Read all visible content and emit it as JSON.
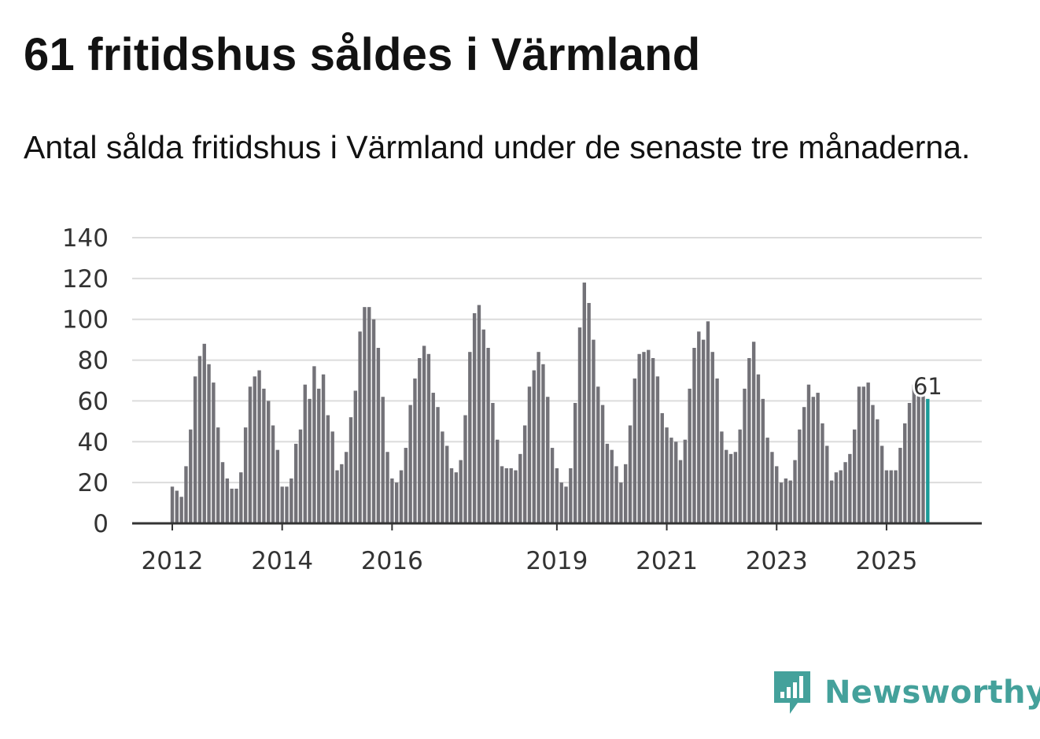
{
  "header": {
    "title": "61 fritidshus såldes i Värmland",
    "subtitle": "Antal sålda fritidshus i Värmland under de senaste tre månaderna."
  },
  "brand": {
    "name": "Newsworthy",
    "color": "#44a19b"
  },
  "colors": {
    "bar": "#737278",
    "highlight": "#1a9b98",
    "grid": "#dcdcdc",
    "axis": "#333333"
  },
  "chart_data": {
    "type": "bar",
    "title": "61 fritidshus såldes i Värmland",
    "subtitle": "Antal sålda fritidshus i Värmland under de senaste tre månaderna.",
    "xlabel": "",
    "ylabel": "",
    "ylim": [
      0,
      140
    ],
    "yticks": [
      0,
      20,
      40,
      60,
      80,
      100,
      120,
      140
    ],
    "grid": true,
    "start": "2012-01",
    "xtick_labels": [
      {
        "label": "2012",
        "index": 0
      },
      {
        "label": "2014",
        "index": 24
      },
      {
        "label": "2016",
        "index": 48
      },
      {
        "label": "2019",
        "index": 84
      },
      {
        "label": "2021",
        "index": 108
      },
      {
        "label": "2023",
        "index": 132
      },
      {
        "label": "2025",
        "index": 156
      }
    ],
    "values": [
      18,
      16,
      13,
      28,
      46,
      72,
      82,
      88,
      78,
      69,
      47,
      30,
      22,
      17,
      17,
      25,
      47,
      67,
      72,
      75,
      66,
      60,
      48,
      36,
      18,
      18,
      22,
      39,
      46,
      68,
      61,
      77,
      66,
      73,
      53,
      45,
      26,
      29,
      35,
      52,
      65,
      94,
      106,
      106,
      100,
      86,
      62,
      35,
      22,
      20,
      26,
      37,
      58,
      71,
      81,
      87,
      83,
      64,
      57,
      45,
      38,
      27,
      25,
      31,
      53,
      84,
      103,
      107,
      95,
      86,
      59,
      41,
      28,
      27,
      27,
      26,
      34,
      48,
      67,
      75,
      84,
      78,
      62,
      37,
      27,
      20,
      18,
      27,
      59,
      96,
      118,
      108,
      90,
      67,
      58,
      39,
      36,
      28,
      20,
      29,
      48,
      71,
      83,
      84,
      85,
      81,
      72,
      54,
      47,
      42,
      40,
      31,
      41,
      66,
      86,
      94,
      90,
      99,
      84,
      71,
      45,
      36,
      34,
      35,
      46,
      66,
      81,
      89,
      73,
      61,
      42,
      35,
      28,
      20,
      22,
      21,
      31,
      46,
      57,
      68,
      62,
      64,
      49,
      38,
      21,
      25,
      26,
      30,
      34,
      46,
      67,
      67,
      69,
      58,
      51,
      38,
      26,
      26,
      26,
      37,
      49,
      59,
      68,
      67,
      67,
      61
    ],
    "highlight": {
      "index": 165,
      "value": 61,
      "label": "61"
    }
  }
}
